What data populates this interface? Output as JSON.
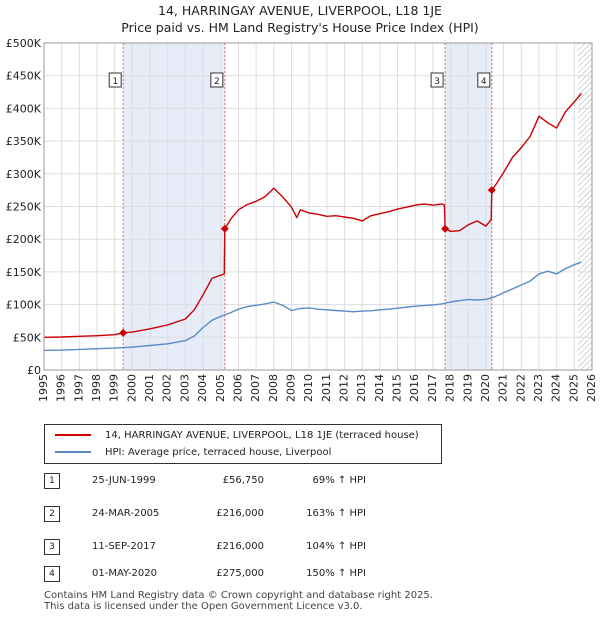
{
  "chart_data": {
    "type": "line",
    "title": "14, HARRINGAY AVENUE, LIVERPOOL, L18 1JE",
    "subtitle": "Price paid vs. HM Land Registry's House Price Index (HPI)",
    "xlabel": "",
    "ylabel": "",
    "xlim": [
      1995,
      2026
    ],
    "ylim": [
      0,
      500000
    ],
    "x_ticks": [
      "1995",
      "1996",
      "1997",
      "1998",
      "1999",
      "2000",
      "2001",
      "2002",
      "2003",
      "2004",
      "2005",
      "2006",
      "2007",
      "2008",
      "2009",
      "2010",
      "2011",
      "2012",
      "2013",
      "2014",
      "2015",
      "2016",
      "2017",
      "2018",
      "2019",
      "2020",
      "2021",
      "2022",
      "2023",
      "2024",
      "2025",
      "2026"
    ],
    "y_ticks": [
      {
        "value": 0,
        "label": "£0"
      },
      {
        "value": 50000,
        "label": "£50K"
      },
      {
        "value": 100000,
        "label": "£100K"
      },
      {
        "value": 150000,
        "label": "£150K"
      },
      {
        "value": 200000,
        "label": "£200K"
      },
      {
        "value": 250000,
        "label": "£250K"
      },
      {
        "value": 300000,
        "label": "£300K"
      },
      {
        "value": 350000,
        "label": "£350K"
      },
      {
        "value": 400000,
        "label": "£400K"
      },
      {
        "value": 450000,
        "label": "£450K"
      },
      {
        "value": 500000,
        "label": "£500K"
      }
    ],
    "grid": true,
    "shaded_periods": [
      {
        "from": 1999.48,
        "to": 2005.23
      },
      {
        "from": 2017.69,
        "to": 2020.33
      }
    ],
    "future_hatch_from": 2025.2,
    "series": [
      {
        "name": "14, HARRINGAY AVENUE, LIVERPOOL, L18 1JE (terraced house)",
        "color": "#cc0000",
        "x": [
          1995,
          1996,
          1997,
          1998,
          1999.0,
          1999.48,
          2000,
          2001,
          2002,
          2003,
          2003.5,
          2004,
          2004.5,
          2005.2,
          2005.23,
          2005.6,
          2006,
          2006.5,
          2007,
          2007.5,
          2008,
          2008.5,
          2009,
          2009.3,
          2009.5,
          2010,
          2010.5,
          2011,
          2011.5,
          2012,
          2012.5,
          2013,
          2013.5,
          2014,
          2014.5,
          2015,
          2015.5,
          2016,
          2016.5,
          2017,
          2017.5,
          2017.65,
          2017.69,
          2018,
          2018.5,
          2019,
          2019.5,
          2020,
          2020.3,
          2020.33,
          2020.6,
          2021,
          2021.5,
          2022,
          2022.5,
          2023,
          2023.5,
          2024,
          2024.5,
          2025,
          2025.4
        ],
        "values": [
          50000,
          50500,
          51500,
          52500,
          54000,
          56750,
          58000,
          63000,
          69000,
          78000,
          92000,
          115000,
          140000,
          147000,
          216000,
          232000,
          245000,
          253000,
          258000,
          265000,
          278000,
          265000,
          249000,
          233000,
          245000,
          240000,
          238000,
          235000,
          236000,
          234000,
          232000,
          228000,
          236000,
          239000,
          242000,
          246000,
          249000,
          252000,
          254000,
          252000,
          254000,
          252000,
          216000,
          212000,
          213000,
          222000,
          228000,
          220000,
          230000,
          275000,
          285000,
          302000,
          325000,
          340000,
          357000,
          388000,
          378000,
          370000,
          395000,
          410000,
          423000
        ]
      },
      {
        "name": "HPI: Average price, terraced house, Liverpool",
        "color": "#5b8ac7",
        "x": [
          1995,
          1996,
          1997,
          1998,
          1999,
          2000,
          2001,
          2002,
          2003,
          2003.5,
          2004,
          2004.5,
          2005,
          2005.5,
          2006,
          2006.5,
          2007,
          2007.5,
          2008,
          2008.5,
          2009,
          2009.5,
          2010,
          2010.5,
          2011,
          2011.5,
          2012,
          2012.5,
          2013,
          2013.5,
          2014,
          2014.5,
          2015,
          2015.5,
          2016,
          2016.5,
          2017,
          2017.5,
          2018,
          2018.5,
          2019,
          2019.5,
          2020,
          2020.5,
          2021,
          2021.5,
          2022,
          2022.5,
          2023,
          2023.5,
          2024,
          2024.5,
          2025,
          2025.4
        ],
        "values": [
          30000,
          30500,
          31500,
          32500,
          33500,
          35000,
          37500,
          40000,
          45000,
          52000,
          65000,
          76000,
          82000,
          87000,
          93000,
          97000,
          99000,
          101000,
          104000,
          99000,
          91000,
          94000,
          95000,
          93000,
          92000,
          91000,
          90000,
          89000,
          90000,
          90500,
          92000,
          93000,
          94500,
          96000,
          97500,
          98500,
          99500,
          101000,
          104000,
          106000,
          108000,
          107000,
          108000,
          112000,
          118000,
          124000,
          130000,
          136000,
          147000,
          151000,
          147000,
          155000,
          161000,
          165000
        ]
      }
    ],
    "markers": [
      {
        "label": "1",
        "x": 1999.48,
        "y": 56750
      },
      {
        "label": "2",
        "x": 2005.23,
        "y": 216000
      },
      {
        "label": "3",
        "x": 2017.69,
        "y": 216000
      },
      {
        "label": "4",
        "x": 2020.33,
        "y": 275000
      }
    ]
  },
  "legend": {
    "property_label": "14, HARRINGAY AVENUE, LIVERPOOL, L18 1JE (terraced house)",
    "hpi_label": "HPI: Average price, terraced house, Liverpool"
  },
  "transactions": [
    {
      "num": "1",
      "date": "25-JUN-1999",
      "price": "£56,750",
      "hpi": "69% ↑ HPI"
    },
    {
      "num": "2",
      "date": "24-MAR-2005",
      "price": "£216,000",
      "hpi": "163% ↑ HPI"
    },
    {
      "num": "3",
      "date": "11-SEP-2017",
      "price": "£216,000",
      "hpi": "104% ↑ HPI"
    },
    {
      "num": "4",
      "date": "01-MAY-2020",
      "price": "£275,000",
      "hpi": "150% ↑ HPI"
    }
  ],
  "footer": {
    "line1": "Contains HM Land Registry data © Crown copyright and database right 2025.",
    "line2": "This data is licensed under the Open Government Licence v3.0."
  }
}
